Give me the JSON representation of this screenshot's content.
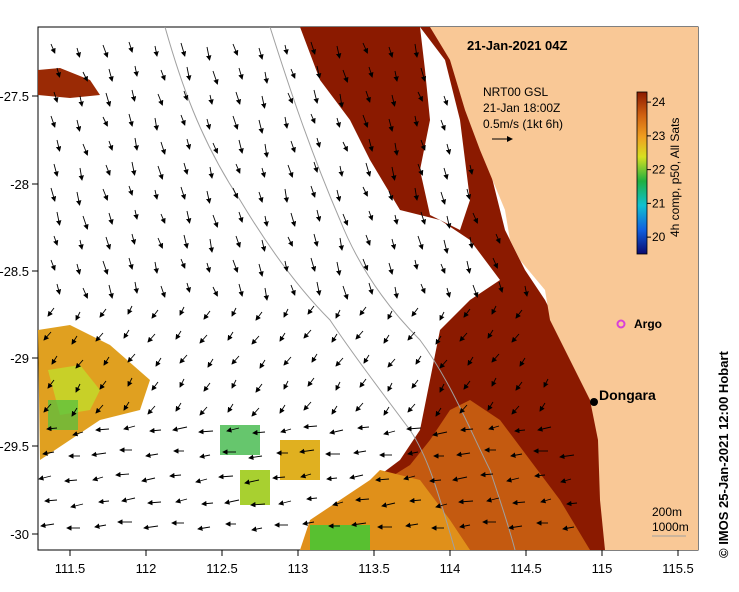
{
  "title": "21-Jan-2021 04Z",
  "x_axis": {
    "ticks": [
      "111.5",
      "112",
      "112.5",
      "113",
      "113.5",
      "114",
      "114.5",
      "115",
      "115.5"
    ]
  },
  "y_axis": {
    "ticks": [
      "-27.5",
      "-28",
      "-28.5",
      "-29",
      "-29.5",
      "-30"
    ]
  },
  "current_note": {
    "line1": "NRT00 GSL",
    "line2": "21-Jan 18:00Z",
    "line3": "0.5m/s (1kt 6h)"
  },
  "colorbar": {
    "label": "4h comp, p50, All Sats",
    "ticks": [
      "24",
      "23",
      "22",
      "21",
      "20"
    ],
    "range": [
      19.5,
      24.3
    ]
  },
  "places": {
    "dongara": "Dongara",
    "argo": "Argo"
  },
  "contours": {
    "c200": "200m",
    "c1000": "1000m"
  },
  "credit": "©  IMOS 25-Jan-2021 12:00 Hobart",
  "colors": {
    "land": "#f9c896",
    "warm": "#8b1a00",
    "mid": "#d8731a",
    "cool": "#2bb040",
    "argo": "#d940d9"
  }
}
